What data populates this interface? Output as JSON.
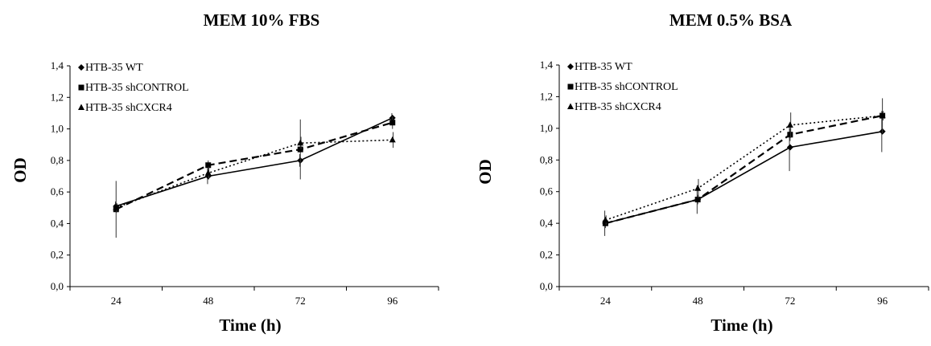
{
  "chart_data": [
    {
      "type": "line",
      "title": "MEM 10% FBS",
      "xlabel": "Time (h)",
      "ylabel": "OD",
      "categories": [
        "24",
        "48",
        "72",
        "96"
      ],
      "yticks": [
        "0,0",
        "0,2",
        "0,4",
        "0,6",
        "0,8",
        "1,0",
        "1,2",
        "1,4"
      ],
      "ylim": [
        0,
        1.4
      ],
      "grid": false,
      "legend_position": "top-left",
      "series": [
        {
          "name": "HTB-35 WT",
          "marker": "diamond",
          "dash": "solid",
          "values": [
            0.51,
            0.7,
            0.8,
            1.07
          ],
          "errors": [
            0.03,
            0.05,
            0.04,
            0.03
          ]
        },
        {
          "name": "HTB-35 shCONTROL",
          "marker": "square",
          "dash": "dashed",
          "values": [
            0.49,
            0.77,
            0.87,
            1.04
          ],
          "errors": [
            0.18,
            0.03,
            0.19,
            0.04
          ]
        },
        {
          "name": "HTB-35 shCXCR4",
          "marker": "triangle",
          "dash": "dotted",
          "values": [
            0.5,
            0.72,
            0.91,
            0.93
          ],
          "errors": [
            0.03,
            0.04,
            0.04,
            0.05
          ]
        }
      ]
    },
    {
      "type": "line",
      "title": "MEM 0.5% BSA",
      "xlabel": "Time (h)",
      "ylabel": "OD",
      "categories": [
        "24",
        "48",
        "72",
        "96"
      ],
      "yticks": [
        "0,0",
        "0,2",
        "0,4",
        "0,6",
        "0,8",
        "1,0",
        "1,2",
        "1,4"
      ],
      "ylim": [
        0,
        1.4
      ],
      "grid": false,
      "legend_position": "top-left",
      "series": [
        {
          "name": "HTB-35 WT",
          "marker": "diamond",
          "dash": "solid",
          "values": [
            0.4,
            0.55,
            0.88,
            0.98
          ],
          "errors": [
            0.08,
            0.09,
            0.15,
            0.13
          ]
        },
        {
          "name": "HTB-35 shCONTROL",
          "marker": "square",
          "dash": "dashed",
          "values": [
            0.4,
            0.55,
            0.96,
            1.08
          ],
          "errors": [
            0.03,
            0.03,
            0.04,
            0.11
          ]
        },
        {
          "name": "HTB-35 shCXCR4",
          "marker": "triangle",
          "dash": "dotted",
          "values": [
            0.42,
            0.62,
            1.02,
            1.08
          ],
          "errors": [
            0.03,
            0.06,
            0.08,
            0.03
          ]
        }
      ]
    }
  ]
}
